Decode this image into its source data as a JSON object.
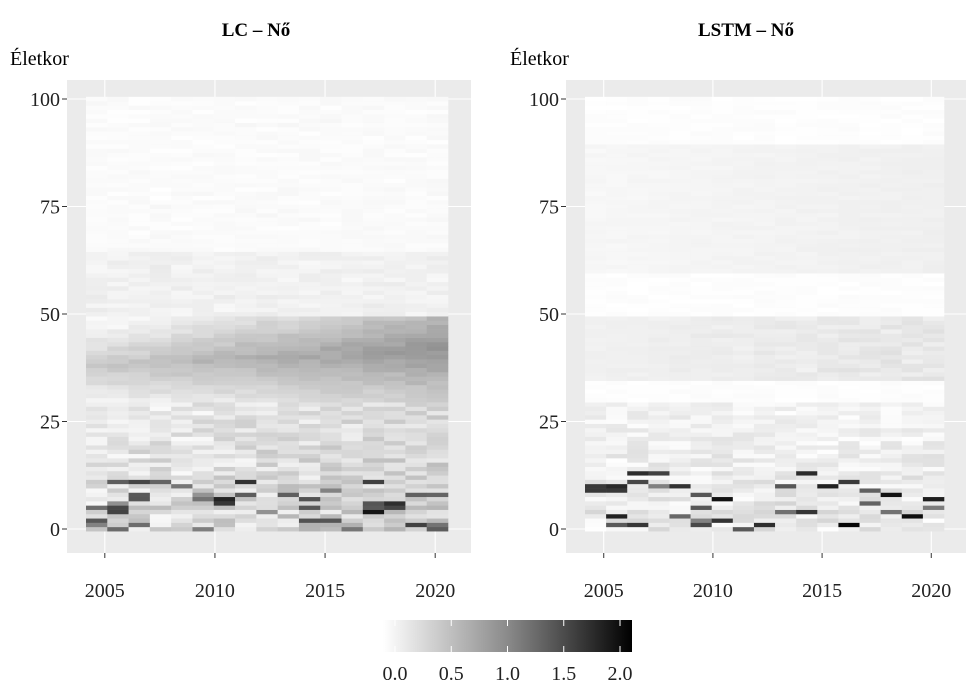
{
  "chart_data": [
    {
      "type": "heatmap",
      "title": "LC – Nő",
      "ylabel": "Életkor",
      "xlabel": "",
      "xlim": [
        2004,
        2021
      ],
      "ylim": [
        0,
        100
      ],
      "xticks": [
        "2005",
        "2010",
        "2015",
        "2020"
      ],
      "yticks": [
        "0",
        "25",
        "50",
        "75",
        "100"
      ],
      "x_years": [
        2004,
        2021
      ],
      "age_range": [
        0,
        100
      ],
      "value_range": [
        0.0,
        2.0
      ]
    },
    {
      "type": "heatmap",
      "title": "LSTM – Nő",
      "ylabel": "Életkor",
      "xlabel": "",
      "xlim": [
        2004,
        2021
      ],
      "ylim": [
        0,
        100
      ],
      "xticks": [
        "2005",
        "2010",
        "2015",
        "2020"
      ],
      "yticks": [
        "0",
        "25",
        "50",
        "75",
        "100"
      ],
      "x_years": [
        2004,
        2021
      ],
      "age_range": [
        0,
        100
      ],
      "value_range": [
        0.0,
        2.0
      ]
    }
  ],
  "legend": {
    "ticks": [
      "0.0",
      "0.5",
      "1.0",
      "1.5",
      "2.0"
    ],
    "low_color": "#ffffff",
    "high_color": "#000000"
  }
}
